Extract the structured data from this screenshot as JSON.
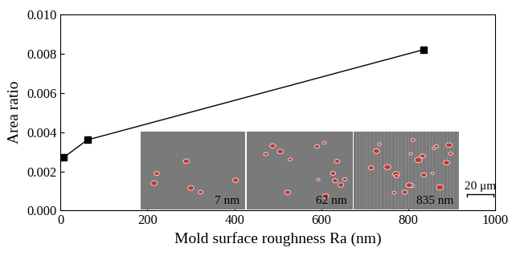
{
  "chart_data": {
    "type": "line",
    "x_label": "Mold surface roughness Ra (nm)",
    "y_label": "Area ratio",
    "x": [
      7,
      62,
      835
    ],
    "values": [
      0.0027,
      0.0036,
      0.0082
    ],
    "color": "#000000",
    "marker": "square",
    "line_style": "solid",
    "xlim": [
      0,
      1000
    ],
    "xticks": [
      0,
      200,
      400,
      600,
      800,
      1000
    ],
    "ylim": [
      0,
      0.01
    ],
    "yticks": [
      {
        "value": 0.0,
        "label": "0.000"
      },
      {
        "value": 0.002,
        "label": "0.002"
      },
      {
        "value": 0.004,
        "label": "0.004"
      },
      {
        "value": 0.006,
        "label": "0.006"
      },
      {
        "value": 0.008,
        "label": "0.008"
      },
      {
        "value": 0.01,
        "label": "0.010"
      }
    ],
    "annotations": [
      "7 nm",
      "62 nm",
      "835 nm",
      "20 μm"
    ]
  }
}
